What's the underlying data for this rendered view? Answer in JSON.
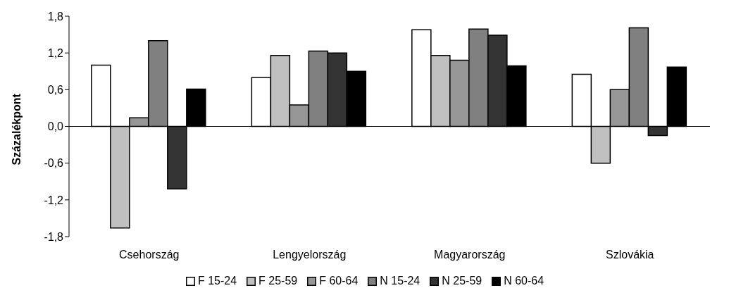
{
  "chart_data": {
    "type": "bar",
    "ylabel": "Százalékpont",
    "categories": [
      "Csehország",
      "Lengyelország",
      "Magyarország",
      "Szlovákia"
    ],
    "series": [
      {
        "name": "F 15-24",
        "color": "#ffffff",
        "values": [
          1.0,
          0.8,
          1.58,
          0.85
        ]
      },
      {
        "name": "F 25-59",
        "color": "#c0c0c0",
        "values": [
          -1.66,
          1.16,
          1.16,
          -0.6
        ]
      },
      {
        "name": "F 60-64",
        "color": "#969696",
        "values": [
          0.14,
          0.35,
          1.08,
          0.6
        ]
      },
      {
        "name": "N 15-24",
        "color": "#808080",
        "values": [
          1.4,
          1.23,
          1.59,
          1.61
        ]
      },
      {
        "name": "N 25-59",
        "color": "#333333",
        "values": [
          -1.02,
          1.2,
          1.49,
          -0.15
        ]
      },
      {
        "name": "N 60-64",
        "color": "#000000",
        "values": [
          0.61,
          0.9,
          0.99,
          0.97
        ]
      }
    ],
    "ylim": [
      -1.8,
      1.8
    ],
    "yticks": [
      {
        "value": -1.8,
        "label": "-1,8"
      },
      {
        "value": -1.2,
        "label": "-1,2"
      },
      {
        "value": -0.6,
        "label": "-0,6"
      },
      {
        "value": 0,
        "label": "0,0"
      },
      {
        "value": 0.6,
        "label": "0,6"
      },
      {
        "value": 1.2,
        "label": "1,2"
      },
      {
        "value": 1.8,
        "label": "1,8"
      }
    ],
    "legend": "bottom"
  }
}
